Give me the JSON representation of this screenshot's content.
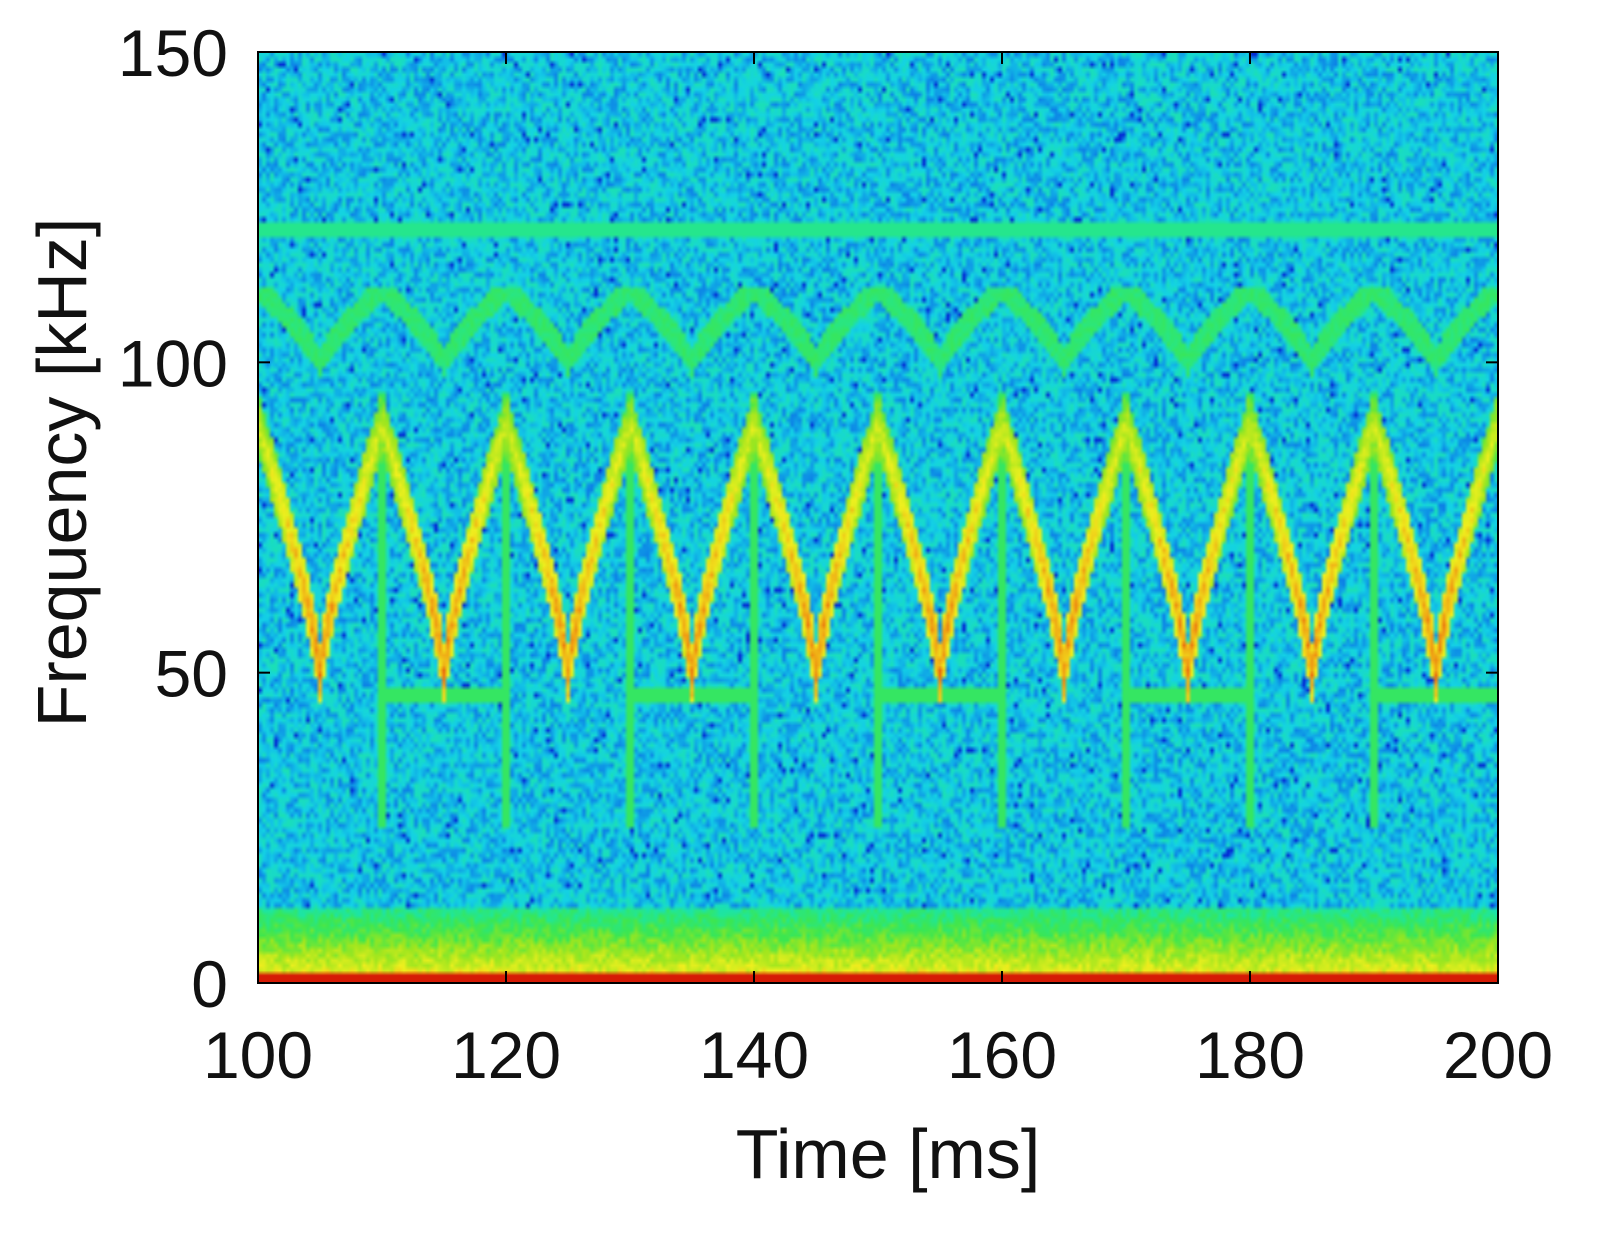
{
  "chart_data": {
    "type": "heatmap",
    "title": "",
    "xlabel": "Time [ms]",
    "ylabel": "Frequency [kHz]",
    "xlim": [
      100,
      200
    ],
    "ylim": [
      0,
      150
    ],
    "x_ticks": [
      100,
      120,
      140,
      160,
      180,
      200
    ],
    "y_ticks": [
      0,
      50,
      100,
      150
    ],
    "grid": false,
    "legend": "none",
    "colormap": [
      "#0000c8",
      "#0a64e6",
      "#14d2e6",
      "#1ee6a0",
      "#3ce650",
      "#a0e61e",
      "#f0f01e",
      "#f0a014",
      "#e63c0a",
      "#c80000"
    ],
    "background_color": "#14d2e6",
    "features": {
      "main_sweep": {
        "description_values": "repeating V-shaped frequency sweep",
        "period_ms": 10,
        "first_minimum_ms": 105,
        "min_khz": 50,
        "max_khz": 90,
        "level": "high"
      },
      "upper_sweep": {
        "period_ms": 10,
        "first_minimum_ms": 105,
        "min_khz": 100,
        "max_khz": 112,
        "level": "medium"
      },
      "horizontal_band_khz": 121,
      "side_band_khz": 46,
      "vertical_impulses_ms": [
        110,
        120,
        130,
        140,
        150,
        160,
        170,
        180,
        190
      ],
      "low_frequency_band_khz": [
        0,
        12
      ],
      "baseline_strip_khz": [
        0,
        2
      ]
    }
  }
}
